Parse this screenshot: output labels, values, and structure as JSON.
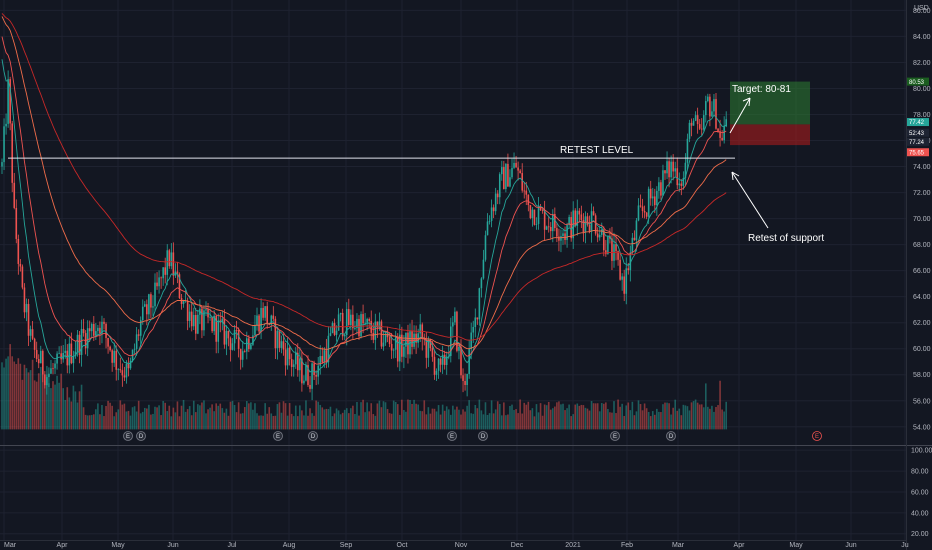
{
  "chart_data": {
    "type": "candlestick",
    "currency_label": "USD",
    "price_axis": {
      "ylim": [
        52.6,
        86.8
      ],
      "ticks": [
        54,
        56,
        58,
        60,
        62,
        64,
        66,
        68,
        70,
        72,
        74,
        76,
        78,
        80,
        82,
        84,
        86
      ]
    },
    "indicator_axis": {
      "ylim": [
        14,
        104
      ],
      "ticks": [
        20,
        40,
        60,
        80,
        100
      ],
      "tick_labels": [
        "20.00",
        "40.00",
        "60.00",
        "80.00",
        "100.00"
      ]
    },
    "x_axis_labels": [
      "Mar",
      "Apr",
      "May",
      "Jun",
      "Jul",
      "Aug",
      "Sep",
      "Oct",
      "Nov",
      "Dec",
      "2021",
      "Feb",
      "Mar",
      "Apr",
      "May",
      "Jun",
      "Ju"
    ],
    "price_badges": [
      {
        "value": 80.53,
        "label": "80.53",
        "color": "#1b5e20"
      },
      {
        "value": 77.42,
        "label": "77.42",
        "color": "#26a69a"
      },
      {
        "value": 76.6,
        "label": "52:43",
        "color": "#1e2433"
      },
      {
        "value": 75.9,
        "label": "77.24",
        "color": "#1e2433"
      },
      {
        "value": 75.1,
        "label": "75.65",
        "color": "#ef5350"
      }
    ],
    "annotations": {
      "retest_level": {
        "price": 74.65,
        "label": "RETEST LEVEL"
      },
      "target": {
        "label": "Target: 80-81"
      },
      "support": {
        "label": "Retest of support"
      },
      "long_position": {
        "target_price": 80.53,
        "entry_price": 77.24,
        "stop_price": 75.65
      }
    },
    "event_markers": [
      "E",
      "D",
      "E",
      "D",
      "E",
      "D",
      "E",
      "D",
      "E"
    ],
    "colors": {
      "up": "#26a69a",
      "down": "#ef5350",
      "ma_fast": "#26a69a",
      "ma_mid": "#ef5350",
      "ma_slow": "#ef6c4a",
      "ma_long": "#c62828"
    },
    "anchors": [
      [
        0,
        74
      ],
      [
        3,
        80
      ],
      [
        6,
        70
      ],
      [
        10,
        64
      ],
      [
        15,
        60
      ],
      [
        22,
        58
      ],
      [
        30,
        59
      ],
      [
        40,
        61
      ],
      [
        48,
        62
      ],
      [
        56,
        59
      ],
      [
        62,
        58
      ],
      [
        68,
        62
      ],
      [
        75,
        64
      ],
      [
        82,
        67
      ],
      [
        88,
        64
      ],
      [
        95,
        62
      ],
      [
        102,
        62
      ],
      [
        110,
        61
      ],
      [
        118,
        60
      ],
      [
        128,
        63
      ],
      [
        134,
        61
      ],
      [
        142,
        59
      ],
      [
        148,
        58
      ],
      [
        152,
        58
      ],
      [
        156,
        59
      ],
      [
        165,
        62
      ],
      [
        175,
        62
      ],
      [
        185,
        61
      ],
      [
        195,
        60
      ],
      [
        205,
        61
      ],
      [
        215,
        58
      ],
      [
        222,
        62
      ],
      [
        226,
        57
      ],
      [
        232,
        62
      ],
      [
        238,
        70
      ],
      [
        245,
        73
      ],
      [
        252,
        74
      ],
      [
        258,
        71
      ],
      [
        266,
        70
      ],
      [
        276,
        69
      ],
      [
        282,
        70
      ],
      [
        290,
        70
      ],
      [
        300,
        67
      ],
      [
        305,
        65
      ],
      [
        312,
        70
      ],
      [
        320,
        72
      ],
      [
        328,
        74
      ],
      [
        334,
        73
      ],
      [
        338,
        78
      ],
      [
        342,
        76
      ],
      [
        346,
        79
      ],
      [
        350,
        78
      ],
      [
        352,
        76
      ],
      [
        354,
        77
      ]
    ]
  }
}
